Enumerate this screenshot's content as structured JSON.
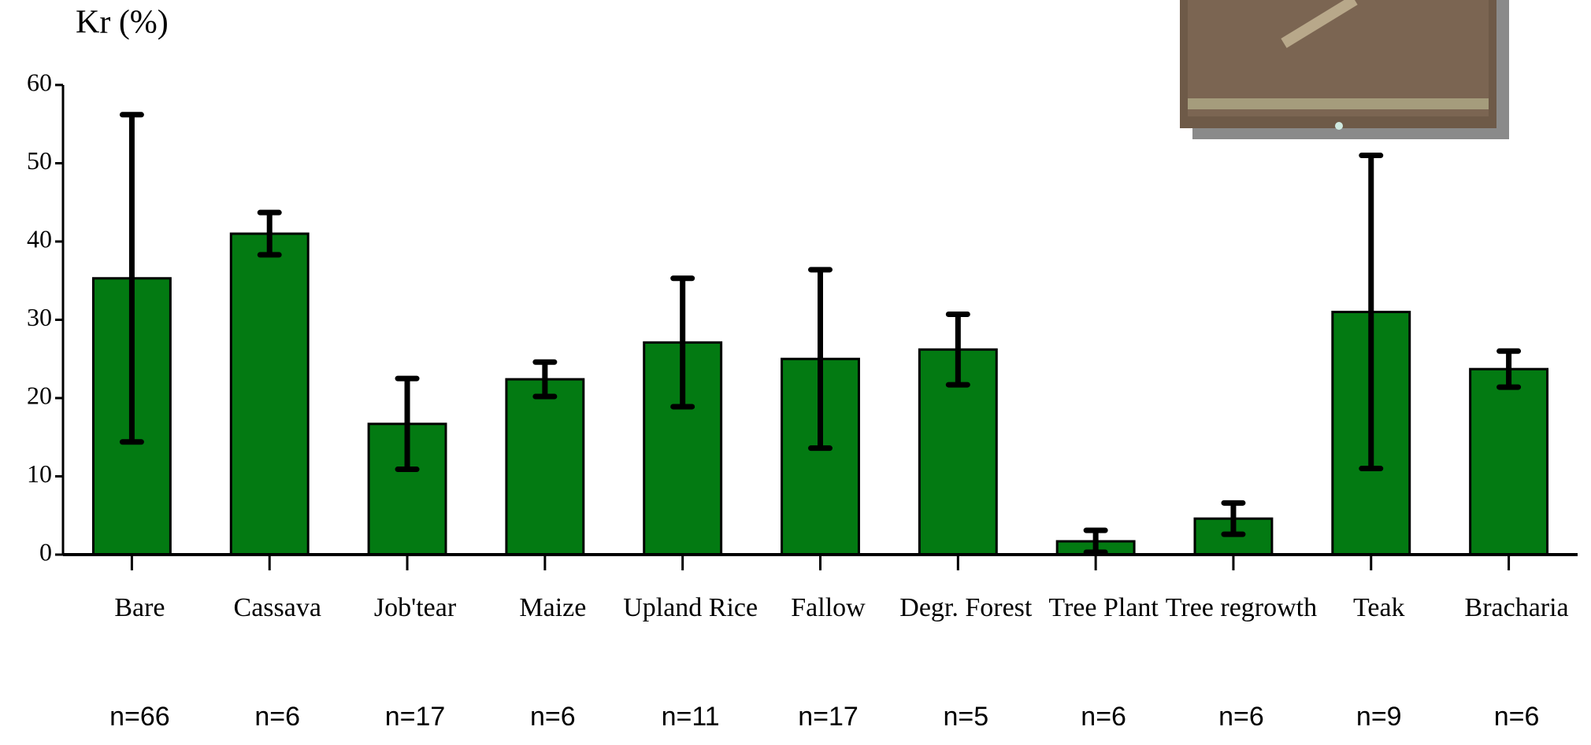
{
  "chart_data": {
    "type": "bar",
    "title": "Kr (%)",
    "categories": [
      "Bare",
      "Cassava",
      "Job'tear",
      "Maize",
      "Upland Rice",
      "Fallow",
      "Degr. Forest",
      "Tree Plant",
      "Tree regrowth",
      "Teak",
      "Bracharia"
    ],
    "values": [
      35.3,
      41.0,
      16.7,
      22.4,
      27.1,
      25.0,
      26.2,
      1.7,
      4.6,
      31.0,
      23.7
    ],
    "errors": [
      20.9,
      2.7,
      5.8,
      2.2,
      8.2,
      11.4,
      4.5,
      1.4,
      2.0,
      20.0,
      2.3
    ],
    "annotations": [
      "n=66",
      "n=6",
      "n=17",
      "n=6",
      "n=11",
      "n=17",
      "n=5",
      "n=6",
      "n=6",
      "n=9",
      "n=6"
    ],
    "color": "#037a12",
    "ylim": [
      0,
      60
    ],
    "yticks": [
      0,
      10,
      20,
      30,
      40,
      50,
      60
    ]
  }
}
